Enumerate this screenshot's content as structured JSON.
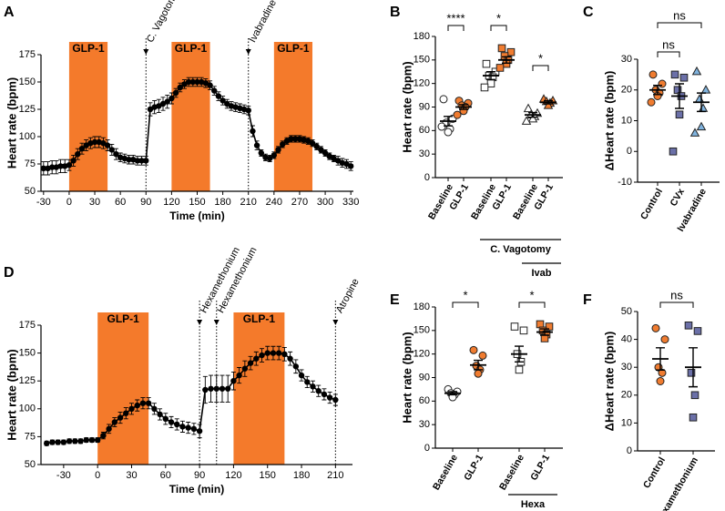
{
  "chart_data": [
    {
      "type": "line",
      "panel": "A",
      "x_label": "Time (min)",
      "y_label": "Heart rate (bpm)",
      "xlim": [
        -33,
        333
      ],
      "xticks": [
        -30,
        0,
        30,
        60,
        90,
        120,
        150,
        180,
        210,
        240,
        270,
        300,
        330
      ],
      "ylim": [
        50,
        175
      ],
      "yticks": [
        50,
        75,
        100,
        125,
        150,
        175
      ],
      "shaded": [
        {
          "start": 0,
          "end": 45,
          "label": "GLP-1"
        },
        {
          "start": 120,
          "end": 165,
          "label": "GLP-1"
        },
        {
          "start": 240,
          "end": 285,
          "label": "GLP-1"
        }
      ],
      "shade_color": "#f47a2b",
      "annotations": [
        {
          "x": 90,
          "text": "C. Vagotomy"
        },
        {
          "x": 210,
          "text": "Ivabradine"
        }
      ],
      "x": [
        -30,
        -25,
        -20,
        -15,
        -10,
        -5,
        0,
        5,
        10,
        15,
        20,
        25,
        30,
        35,
        40,
        45,
        50,
        55,
        60,
        65,
        70,
        75,
        80,
        85,
        90,
        95,
        100,
        105,
        110,
        115,
        120,
        125,
        130,
        135,
        140,
        145,
        150,
        155,
        160,
        165,
        170,
        175,
        180,
        185,
        190,
        195,
        200,
        205,
        210,
        215,
        220,
        225,
        230,
        235,
        240,
        245,
        250,
        255,
        260,
        265,
        270,
        275,
        280,
        285,
        290,
        295,
        300,
        305,
        310,
        315,
        320,
        325,
        330
      ],
      "series": [
        {
          "color": "#000000",
          "values": [
            71,
            71,
            72,
            72,
            73,
            73,
            74,
            78,
            84,
            89,
            92,
            94,
            95,
            95,
            94,
            92,
            88,
            84,
            81,
            80,
            79,
            79,
            78,
            78,
            78,
            125,
            127,
            128,
            130,
            132,
            135,
            140,
            145,
            148,
            150,
            150,
            150,
            150,
            149,
            147,
            142,
            137,
            133,
            130,
            128,
            127,
            126,
            125,
            124,
            105,
            92,
            85,
            81,
            80,
            83,
            88,
            93,
            96,
            98,
            98,
            98,
            97,
            96,
            94,
            91,
            88,
            85,
            82,
            80,
            78,
            76,
            75,
            73
          ],
          "errors": [
            6,
            6,
            6,
            6,
            6,
            6,
            5,
            5,
            5,
            5,
            5,
            5,
            5,
            5,
            5,
            5,
            5,
            5,
            4,
            4,
            4,
            4,
            4,
            4,
            4,
            6,
            6,
            6,
            6,
            6,
            5,
            4,
            4,
            4,
            4,
            4,
            4,
            4,
            4,
            4,
            4,
            4,
            4,
            4,
            4,
            4,
            4,
            4,
            4,
            5,
            4,
            3,
            3,
            3,
            3,
            3,
            3,
            3,
            3,
            3,
            3,
            3,
            3,
            3,
            3,
            3,
            3,
            3,
            3,
            4,
            4,
            4,
            4
          ]
        }
      ]
    },
    {
      "type": "strip",
      "panel": "B",
      "y_label": "Heart rate (bpm)",
      "ylim": [
        0,
        180
      ],
      "yticks": [
        0,
        30,
        60,
        90,
        120,
        150,
        180
      ],
      "categories": [
        "Baseline",
        "GLP-1",
        "Baseline",
        "GLP-1",
        "Baseline",
        "GLP-1"
      ],
      "markers": [
        "circle",
        "circle",
        "square",
        "square",
        "triangle",
        "triangle"
      ],
      "colors": [
        "#ffffff",
        "#f07c30",
        "#ffffff",
        "#f07c30",
        "#ffffff",
        "#f07c30"
      ],
      "points": [
        [
          100,
          75,
          70,
          62,
          58,
          65
        ],
        [
          98,
          95,
          92,
          90,
          85,
          80
        ],
        [
          145,
          135,
          130,
          128,
          120,
          115
        ],
        [
          165,
          160,
          155,
          150,
          145,
          140
        ],
        [
          88,
          82,
          80,
          78,
          75,
          72
        ],
        [
          100,
          98,
          97,
          95,
          92
        ]
      ],
      "means": [
        72,
        90,
        130,
        150,
        80,
        96
      ],
      "errors": [
        6,
        3,
        5,
        4,
        3,
        2
      ],
      "significance": [
        "****",
        "*",
        "*"
      ],
      "group_labels": [
        "C. Vagotomy",
        "Ivab"
      ]
    },
    {
      "type": "strip",
      "panel": "C",
      "y_label": "ΔHeart rate (bpm)",
      "ylim": [
        -10,
        30
      ],
      "yticks": [
        -10,
        0,
        10,
        20,
        30
      ],
      "categories": [
        "Control",
        "CVx",
        "Ivabradine"
      ],
      "markers": [
        "circle",
        "square",
        "triangle"
      ],
      "colors": [
        "#f07c30",
        "#6b70a8",
        "#80b3de"
      ],
      "points": [
        [
          25,
          22,
          20,
          19,
          18,
          16
        ],
        [
          25,
          24,
          20,
          18,
          12,
          0
        ],
        [
          26,
          20,
          17,
          14,
          8,
          6
        ]
      ],
      "means": [
        20,
        18,
        16
      ],
      "errors": [
        1.5,
        4,
        3
      ],
      "significance": [
        "ns",
        "ns"
      ]
    },
    {
      "type": "line",
      "panel": "D",
      "x_label": "Time (min)",
      "y_label": "Heart rate (bpm)",
      "xlim": [
        -50,
        225
      ],
      "xticks": [
        -30,
        0,
        30,
        60,
        90,
        120,
        150,
        180,
        210
      ],
      "ylim": [
        50,
        175
      ],
      "yticks": [
        50,
        75,
        100,
        125,
        150,
        175
      ],
      "shaded": [
        {
          "start": 0,
          "end": 45,
          "label": "GLP-1"
        },
        {
          "start": 120,
          "end": 165,
          "label": "GLP-1"
        }
      ],
      "shade_color": "#f47a2b",
      "annotations": [
        {
          "x": 90,
          "text": "Hexamethonium"
        },
        {
          "x": 105,
          "text": "Hexamethonium"
        },
        {
          "x": 210,
          "text": "Atropine"
        }
      ],
      "x": [
        -45,
        -40,
        -35,
        -30,
        -25,
        -20,
        -15,
        -10,
        -5,
        0,
        5,
        10,
        15,
        20,
        25,
        30,
        35,
        40,
        45,
        50,
        55,
        60,
        65,
        70,
        75,
        80,
        85,
        90,
        95,
        100,
        105,
        110,
        115,
        120,
        125,
        130,
        135,
        140,
        145,
        150,
        155,
        160,
        165,
        170,
        175,
        180,
        185,
        190,
        195,
        200,
        205,
        210
      ],
      "series": [
        {
          "color": "#000000",
          "values": [
            69,
            70,
            70,
            70,
            71,
            71,
            71,
            72,
            72,
            72,
            76,
            82,
            88,
            92,
            96,
            100,
            103,
            105,
            105,
            100,
            95,
            91,
            88,
            86,
            84,
            83,
            82,
            80,
            117,
            118,
            118,
            118,
            118,
            125,
            130,
            136,
            141,
            145,
            148,
            150,
            150,
            150,
            149,
            145,
            138,
            130,
            124,
            120,
            116,
            113,
            110,
            108
          ],
          "errors": [
            2,
            2,
            2,
            2,
            2,
            2,
            2,
            2,
            2,
            2,
            3,
            4,
            4,
            5,
            5,
            5,
            5,
            5,
            5,
            5,
            5,
            5,
            5,
            5,
            5,
            5,
            5,
            6,
            12,
            12,
            12,
            12,
            12,
            8,
            7,
            7,
            6,
            6,
            6,
            6,
            6,
            6,
            6,
            6,
            6,
            5,
            5,
            5,
            5,
            5,
            5,
            5
          ]
        }
      ]
    },
    {
      "type": "strip",
      "panel": "E",
      "y_label": "Heart rate (bpm)",
      "ylim": [
        0,
        180
      ],
      "yticks": [
        0,
        30,
        60,
        90,
        120,
        150,
        180
      ],
      "categories": [
        "Baseline",
        "GLP-1",
        "Baseline",
        "GLP-1"
      ],
      "markers": [
        "circle",
        "circle",
        "square",
        "square"
      ],
      "colors": [
        "#ffffff",
        "#f07c30",
        "#ffffff",
        "#f07c30"
      ],
      "points": [
        [
          75,
          72,
          70,
          68,
          65
        ],
        [
          125,
          118,
          105,
          100,
          95
        ],
        [
          155,
          150,
          120,
          110,
          100
        ],
        [
          158,
          155,
          150,
          145,
          140
        ]
      ],
      "means": [
        70,
        106,
        120,
        148
      ],
      "errors": [
        2,
        6,
        10,
        4
      ],
      "significance": [
        "*",
        "*"
      ],
      "group_labels": [
        "Hexa"
      ]
    },
    {
      "type": "strip",
      "panel": "F",
      "y_label": "ΔHeart rate (bpm)",
      "ylim": [
        0,
        50
      ],
      "yticks": [
        0,
        10,
        20,
        30,
        40,
        50
      ],
      "categories": [
        "Control",
        "Hexamethonium"
      ],
      "markers": [
        "circle",
        "square"
      ],
      "colors": [
        "#f07c30",
        "#6b70a8"
      ],
      "points": [
        [
          44,
          40,
          30,
          28,
          25
        ],
        [
          45,
          43,
          28,
          20,
          12
        ]
      ],
      "means": [
        33,
        30
      ],
      "errors": [
        4,
        7
      ],
      "significance": [
        "ns"
      ]
    }
  ]
}
